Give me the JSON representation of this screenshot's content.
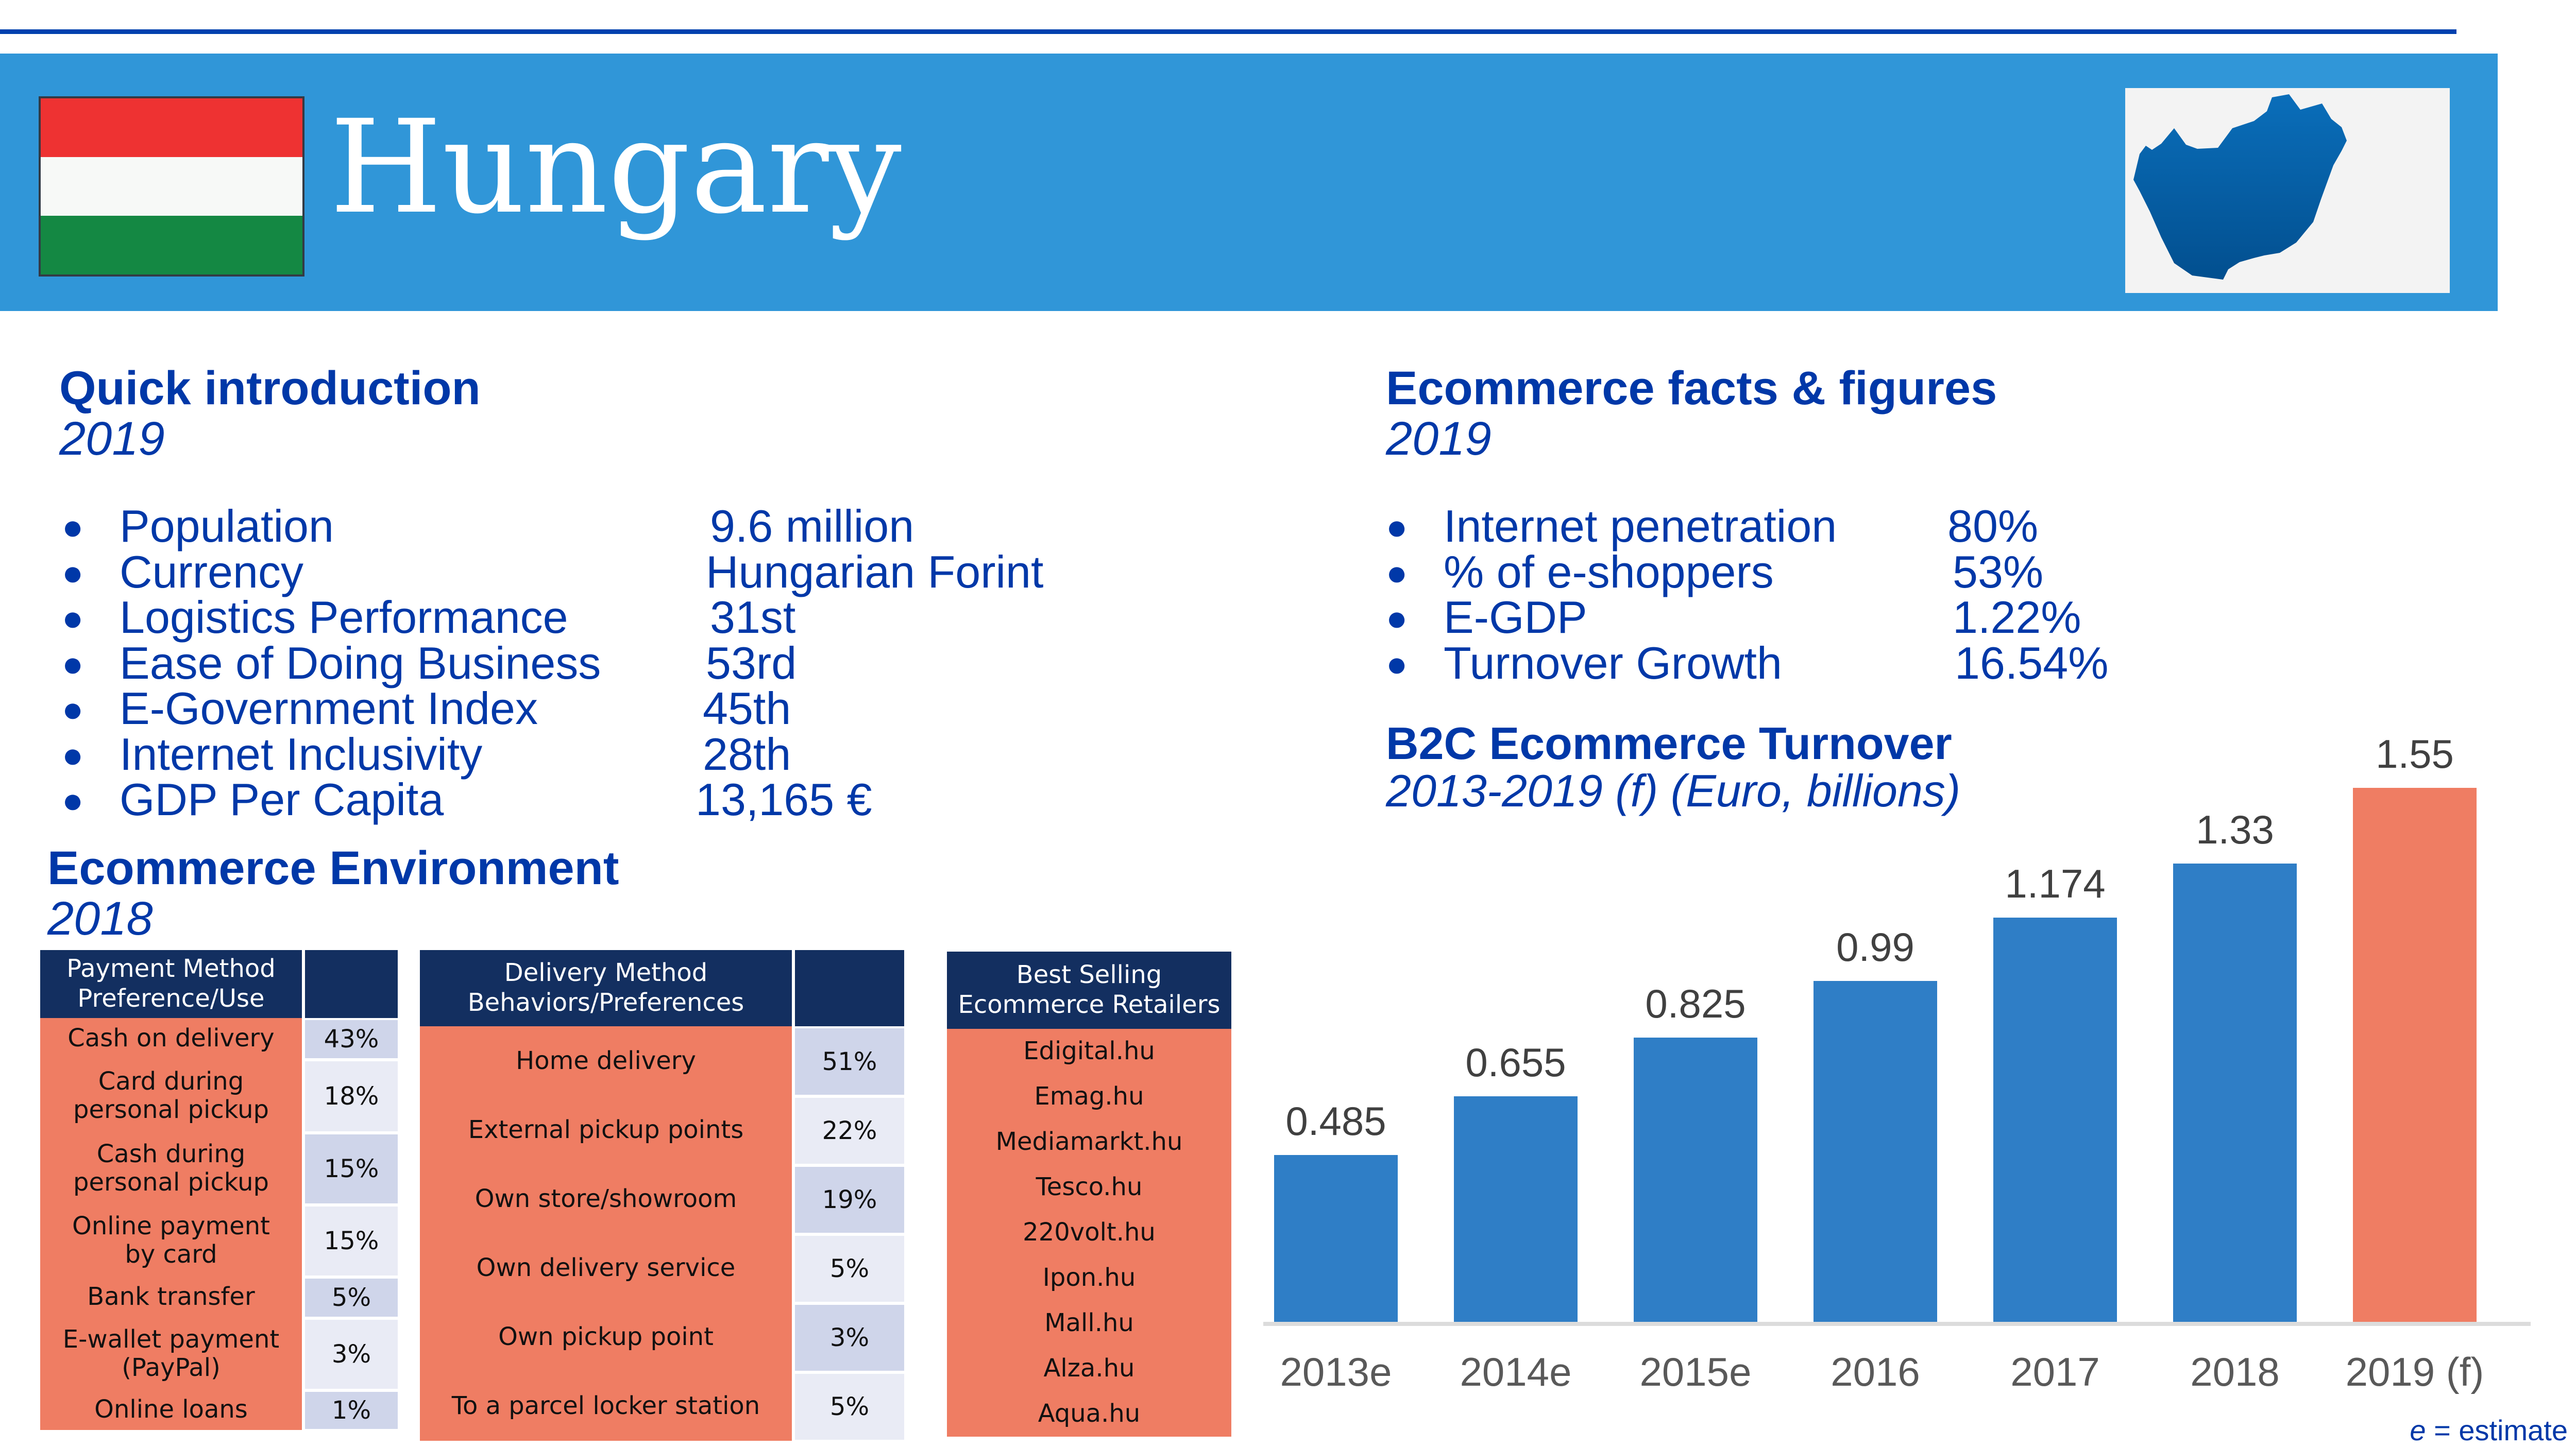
{
  "header": {
    "country": "Hungary",
    "flag_colors": [
      "#ee3232",
      "#f7f9f7",
      "#148843"
    ],
    "map_icon": "hungary-map-icon",
    "banner_color": "#3096d8"
  },
  "quick_intro": {
    "title": "Quick introduction",
    "year": "2019",
    "items": [
      {
        "label": "Population",
        "value": "9.6 million"
      },
      {
        "label": "Currency",
        "value": "Hungarian Forint"
      },
      {
        "label": "Logistics Performance",
        "value": "31st"
      },
      {
        "label": "Ease of Doing Business",
        "value": "53rd"
      },
      {
        "label": "E-Government Index",
        "value": "45th"
      },
      {
        "label": "Internet Inclusivity",
        "value": "28th"
      },
      {
        "label": "GDP Per Capita",
        "value": "13,165 €"
      }
    ]
  },
  "ecom_facts": {
    "title": "Ecommerce facts & figures",
    "year": "2019",
    "items": [
      {
        "label": "Internet penetration",
        "value": "80%"
      },
      {
        "label": "% of e-shoppers",
        "value": "53%"
      },
      {
        "label": "E-GDP",
        "value": "1.22%"
      },
      {
        "label": "Turnover Growth",
        "value": "16.54%"
      }
    ]
  },
  "ecom_env": {
    "title": "Ecommerce Environment",
    "year": "2018",
    "payment": {
      "header": "Payment Method Preference/Use",
      "rows": [
        {
          "label": "Cash on delivery",
          "value": "43%"
        },
        {
          "label": "Card during personal pickup",
          "value": "18%"
        },
        {
          "label": "Cash during personal pickup",
          "value": "15%"
        },
        {
          "label": "Online payment by card",
          "value": "15%"
        },
        {
          "label": "Bank transfer",
          "value": "5%"
        },
        {
          "label": "E-wallet payment (PayPal)",
          "value": "3%"
        },
        {
          "label": "Online loans",
          "value": "1%"
        }
      ]
    },
    "delivery": {
      "header": "Delivery Method Behaviors/Preferences",
      "rows": [
        {
          "label": "Home delivery",
          "value": "51%"
        },
        {
          "label": "External pickup points",
          "value": "22%"
        },
        {
          "label": "Own store/showroom",
          "value": "19%"
        },
        {
          "label": "Own delivery service",
          "value": "5%"
        },
        {
          "label": "Own pickup point",
          "value": "3%"
        },
        {
          "label": "To a parcel locker station",
          "value": "5%"
        }
      ]
    },
    "retailers": {
      "header": "Best Selling Ecommerce Retailers",
      "rows": [
        "Edigital.hu",
        "Emag.hu",
        "Mediamarkt.hu",
        "Tesco.hu",
        "220volt.hu",
        "Ipon.hu",
        "Mall.hu",
        "Alza.hu",
        "Aqua.hu"
      ]
    }
  },
  "chart_data": {
    "type": "bar",
    "title": "B2C Ecommerce Turnover",
    "subtitle": "2013-2019 (f) (Euro, billions)",
    "categories": [
      "2013e",
      "2014e",
      "2015e",
      "2016",
      "2017",
      "2018",
      "2019 (f)"
    ],
    "values": [
      0.485,
      0.655,
      0.825,
      0.99,
      1.174,
      1.33,
      1.55
    ],
    "value_labels": [
      "0.485",
      "0.655",
      "0.825",
      "0.99",
      "1.174",
      "1.33",
      "1.55"
    ],
    "ylim": [
      0,
      1.55
    ],
    "colors": [
      "#2f7ec6",
      "#2f7ec6",
      "#2f7ec6",
      "#2f7ec6",
      "#2f7ec6",
      "#2f7ec6",
      "#ef7d63"
    ],
    "grid": false,
    "note_symbol": "e",
    "note_text": " = estimate"
  }
}
